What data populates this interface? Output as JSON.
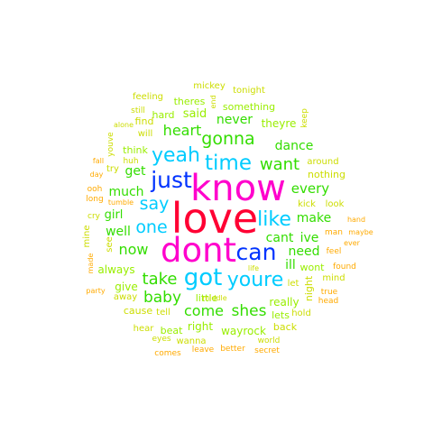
{
  "colors": {
    "magenta": "#ff00cc",
    "red": "#ff0033",
    "blue": "#0033ff",
    "cyan": "#00ccff",
    "green": "#33dd00",
    "lime": "#99ee00",
    "yellow": "#ccdd00",
    "orange": "#ffaa00"
  },
  "words": [
    {
      "text": "love",
      "color": "red"
    },
    {
      "text": "know",
      "color": "magenta"
    },
    {
      "text": "dont",
      "color": "magenta"
    },
    {
      "text": "just",
      "color": "blue"
    },
    {
      "text": "got",
      "color": "cyan"
    },
    {
      "text": "youre",
      "color": "cyan"
    },
    {
      "text": "can",
      "color": "blue"
    },
    {
      "text": "time",
      "color": "cyan"
    },
    {
      "text": "yeah",
      "color": "cyan"
    },
    {
      "text": "like",
      "color": "cyan"
    },
    {
      "text": "say",
      "color": "cyan"
    },
    {
      "text": "one",
      "color": "cyan"
    },
    {
      "text": "gonna",
      "color": "green"
    },
    {
      "text": "heart",
      "color": "green"
    },
    {
      "text": "want",
      "color": "green"
    },
    {
      "text": "take",
      "color": "green"
    },
    {
      "text": "baby",
      "color": "green"
    },
    {
      "text": "come",
      "color": "green"
    },
    {
      "text": "shes",
      "color": "green"
    },
    {
      "text": "never",
      "color": "green"
    },
    {
      "text": "dance",
      "color": "green"
    },
    {
      "text": "every",
      "color": "green"
    },
    {
      "text": "make",
      "color": "green"
    },
    {
      "text": "cant",
      "color": "green"
    },
    {
      "text": "ive",
      "color": "green"
    },
    {
      "text": "now",
      "color": "green"
    },
    {
      "text": "much",
      "color": "green"
    },
    {
      "text": "need",
      "color": "green"
    },
    {
      "text": "ill",
      "color": "green"
    },
    {
      "text": "well",
      "color": "green"
    },
    {
      "text": "get",
      "color": "green"
    },
    {
      "text": "girl",
      "color": "green"
    },
    {
      "text": "said",
      "color": "lime"
    },
    {
      "text": "theyre",
      "color": "lime"
    },
    {
      "text": "something",
      "color": "lime"
    },
    {
      "text": "theres",
      "color": "lime"
    },
    {
      "text": "hard",
      "color": "lime"
    },
    {
      "text": "think",
      "color": "lime"
    },
    {
      "text": "give",
      "color": "lime"
    },
    {
      "text": "always",
      "color": "lime"
    },
    {
      "text": "little",
      "color": "lime"
    },
    {
      "text": "really",
      "color": "lime"
    },
    {
      "text": "right",
      "color": "lime"
    },
    {
      "text": "wayrock",
      "color": "lime"
    },
    {
      "text": "beat",
      "color": "lime"
    },
    {
      "text": "wont",
      "color": "lime"
    },
    {
      "text": "lets",
      "color": "lime"
    },
    {
      "text": "nothing",
      "color": "yellow"
    },
    {
      "text": "around",
      "color": "yellow"
    },
    {
      "text": "keep",
      "color": "yellow"
    },
    {
      "text": "mickey",
      "color": "yellow"
    },
    {
      "text": "tonight",
      "color": "yellow"
    },
    {
      "text": "end",
      "color": "yellow"
    },
    {
      "text": "feeling",
      "color": "yellow"
    },
    {
      "text": "still",
      "color": "yellow"
    },
    {
      "text": "find",
      "color": "yellow"
    },
    {
      "text": "will",
      "color": "yellow"
    },
    {
      "text": "alone",
      "color": "yellow"
    },
    {
      "text": "youve",
      "color": "yellow"
    },
    {
      "text": "huh",
      "color": "yellow"
    },
    {
      "text": "try",
      "color": "yellow"
    },
    {
      "text": "cry",
      "color": "yellow"
    },
    {
      "text": "mine",
      "color": "yellow"
    },
    {
      "text": "see",
      "color": "yellow"
    },
    {
      "text": "away",
      "color": "yellow"
    },
    {
      "text": "cause",
      "color": "yellow"
    },
    {
      "text": "tell",
      "color": "yellow"
    },
    {
      "text": "hold",
      "color": "yellow"
    },
    {
      "text": "back",
      "color": "yellow"
    },
    {
      "text": "kick",
      "color": "yellow"
    },
    {
      "text": "look",
      "color": "yellow"
    },
    {
      "text": "night",
      "color": "yellow"
    },
    {
      "text": "mind",
      "color": "yellow"
    },
    {
      "text": "let",
      "color": "yellow"
    },
    {
      "text": "hear",
      "color": "yellow"
    },
    {
      "text": "wanna",
      "color": "yellow"
    },
    {
      "text": "eyes",
      "color": "yellow"
    },
    {
      "text": "world",
      "color": "yellow"
    },
    {
      "text": "middle",
      "color": "yellow"
    },
    {
      "text": "life",
      "color": "yellow"
    },
    {
      "text": "fall",
      "color": "orange"
    },
    {
      "text": "day",
      "color": "orange"
    },
    {
      "text": "ooh",
      "color": "orange"
    },
    {
      "text": "long",
      "color": "orange"
    },
    {
      "text": "tumble",
      "color": "orange"
    },
    {
      "text": "made",
      "color": "orange"
    },
    {
      "text": "party",
      "color": "orange"
    },
    {
      "text": "hand",
      "color": "orange"
    },
    {
      "text": "man",
      "color": "orange"
    },
    {
      "text": "maybe",
      "color": "orange"
    },
    {
      "text": "feel",
      "color": "orange"
    },
    {
      "text": "ever",
      "color": "orange"
    },
    {
      "text": "found",
      "color": "orange"
    },
    {
      "text": "true",
      "color": "orange"
    },
    {
      "text": "head",
      "color": "orange"
    },
    {
      "text": "comes",
      "color": "orange"
    },
    {
      "text": "leave",
      "color": "orange"
    },
    {
      "text": "better",
      "color": "orange"
    },
    {
      "text": "secret",
      "color": "orange"
    }
  ]
}
